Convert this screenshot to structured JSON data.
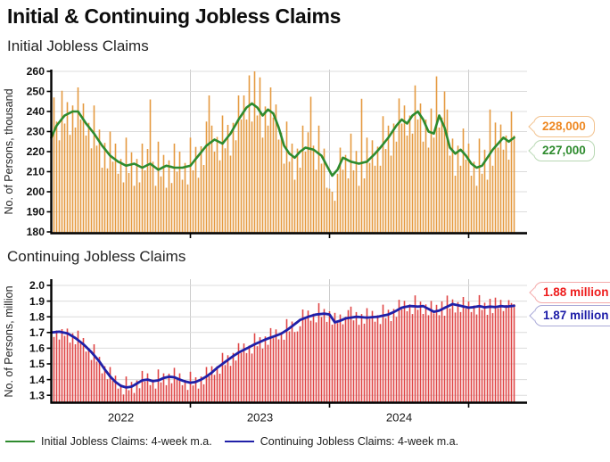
{
  "title": "Initial & Continuing Jobless Claims",
  "legend": [
    {
      "label": "Initial Jobless Claims: 4-week m.a.",
      "color": "#2e8b2e"
    },
    {
      "label": "Continuing Jobless Claims: 4-week m.a.",
      "color": "#2020a8"
    }
  ],
  "chart_data": [
    {
      "type": "bar",
      "subtitle": "Initial Jobless Claims",
      "y_axis_title": "No. of Persons, thousand",
      "y_ticks": [
        180,
        190,
        200,
        210,
        220,
        230,
        240,
        250,
        260
      ],
      "ylim": [
        180,
        260
      ],
      "y_decimals": 0,
      "x_unit": "week",
      "x_start_year": 2022,
      "x_gridline_weeks": [
        52,
        104,
        156
      ],
      "x_year_labels": [],
      "bar_color": "#e59a40",
      "line_color": "#2e8b2e",
      "line_name": "Initial Jobless Claims: 4-week m.a.",
      "callouts": [
        {
          "text": "228,000",
          "color": "#ee8822",
          "border": "#f2c28e"
        },
        {
          "text": "227,000",
          "color": "#2e8b2e",
          "border": "#b9d8b4"
        }
      ],
      "ma_weekly_points": [
        [
          0,
          227
        ],
        [
          2,
          233
        ],
        [
          5,
          238
        ],
        [
          8,
          240
        ],
        [
          10,
          240
        ],
        [
          13,
          234
        ],
        [
          16,
          229
        ],
        [
          19,
          223
        ],
        [
          22,
          218
        ],
        [
          25,
          215
        ],
        [
          28,
          213
        ],
        [
          31,
          214
        ],
        [
          34,
          212
        ],
        [
          37,
          214
        ],
        [
          40,
          211
        ],
        [
          43,
          213
        ],
        [
          46,
          212
        ],
        [
          49,
          212
        ],
        [
          52,
          213
        ],
        [
          55,
          218
        ],
        [
          58,
          223
        ],
        [
          61,
          226
        ],
        [
          64,
          224
        ],
        [
          67,
          229
        ],
        [
          70,
          236
        ],
        [
          73,
          242
        ],
        [
          75,
          244
        ],
        [
          77,
          242
        ],
        [
          79,
          238
        ],
        [
          81,
          241
        ],
        [
          83,
          239
        ],
        [
          85,
          232
        ],
        [
          87,
          223
        ],
        [
          89,
          219
        ],
        [
          91,
          217
        ],
        [
          93,
          220
        ],
        [
          95,
          222
        ],
        [
          98,
          221
        ],
        [
          101,
          218
        ],
        [
          103,
          213
        ],
        [
          105,
          208
        ],
        [
          107,
          211
        ],
        [
          109,
          217
        ],
        [
          112,
          215
        ],
        [
          115,
          214
        ],
        [
          118,
          215
        ],
        [
          121,
          219
        ],
        [
          123,
          222
        ],
        [
          126,
          227
        ],
        [
          129,
          233
        ],
        [
          131,
          236
        ],
        [
          133,
          234
        ],
        [
          135,
          238
        ],
        [
          137,
          240
        ],
        [
          139,
          236
        ],
        [
          141,
          230
        ],
        [
          143,
          229
        ],
        [
          145,
          238
        ],
        [
          147,
          232
        ],
        [
          149,
          222
        ],
        [
          151,
          219
        ],
        [
          153,
          221
        ],
        [
          155,
          218
        ],
        [
          157,
          214
        ],
        [
          159,
          212
        ],
        [
          161,
          213
        ],
        [
          163,
          217
        ],
        [
          165,
          221
        ],
        [
          167,
          224
        ],
        [
          169,
          227
        ],
        [
          171,
          225
        ],
        [
          173,
          227
        ]
      ],
      "bar_offsets_from_ma": [
        4,
        17,
        2,
        -9,
        14,
        -4,
        6,
        -11,
        3,
        -8,
        12,
        -2,
        8,
        -6,
        2,
        -9,
        14,
        -4,
        6,
        -11,
        3,
        -8,
        12,
        -2,
        8,
        -6,
        2,
        -9,
        14,
        -4,
        6,
        -11,
        3,
        -8,
        12,
        -2,
        8,
        32,
        2,
        -9,
        14,
        -4,
        6,
        -11,
        3,
        -8,
        12,
        -2,
        8,
        -6,
        2,
        -9,
        14,
        -4,
        6,
        -11,
        3,
        -8,
        12,
        24,
        8,
        -6,
        2,
        -9,
        14,
        -4,
        6,
        -11,
        3,
        -8,
        12,
        -2,
        8,
        -6,
        15,
        -9,
        17,
        -4,
        17,
        -11,
        3,
        -8,
        12,
        -2,
        8,
        -6,
        2,
        -9,
        14,
        -4,
        6,
        -11,
        3,
        -8,
        12,
        -2,
        8,
        26,
        2,
        -9,
        14,
        -4,
        6,
        -11,
        -9,
        -8,
        -14,
        -2,
        8,
        -6,
        2,
        -9,
        14,
        -4,
        6,
        -11,
        32,
        -8,
        12,
        -2,
        8,
        -6,
        2,
        -9,
        14,
        -4,
        6,
        -11,
        3,
        -8,
        12,
        -2,
        8,
        -6,
        2,
        -9,
        14,
        -4,
        6,
        -11,
        3,
        -8,
        12,
        -2,
        24,
        -6,
        2,
        18,
        14,
        -4,
        6,
        -11,
        3,
        -8,
        12,
        -2,
        8,
        -6,
        2,
        -9,
        14,
        -4,
        6,
        -11,
        22,
        -8,
        12,
        -2,
        8,
        -6,
        2,
        -9,
        14,
        1
      ]
    },
    {
      "type": "bar",
      "subtitle": "Continuing Jobless Claims",
      "y_axis_title": "No. of Persons, million",
      "y_ticks": [
        1.3,
        1.4,
        1.5,
        1.6,
        1.7,
        1.8,
        1.9,
        2.0
      ],
      "ylim": [
        1.3,
        2.0
      ],
      "y_decimals": 1,
      "x_unit": "week",
      "x_start_year": 2022,
      "x_gridline_weeks": [
        52,
        104,
        156
      ],
      "x_year_labels": [
        {
          "text": "2022",
          "week": 26
        },
        {
          "text": "2023",
          "week": 78
        },
        {
          "text": "2024",
          "week": 130
        }
      ],
      "bar_color": "#df4545",
      "line_color": "#2020a8",
      "line_name": "Continuing Jobless Claims: 4-week m.a.",
      "callouts": [
        {
          "text": "1.88 million",
          "color": "#ee1c1c",
          "border": "#f4a9a9"
        },
        {
          "text": "1.87 million",
          "color": "#1d1da8",
          "border": "#a9a9d8"
        }
      ],
      "ma_weekly_points": [
        [
          0,
          1.7
        ],
        [
          3,
          1.705
        ],
        [
          6,
          1.695
        ],
        [
          9,
          1.665
        ],
        [
          12,
          1.625
        ],
        [
          15,
          1.575
        ],
        [
          18,
          1.515
        ],
        [
          20,
          1.465
        ],
        [
          22,
          1.42
        ],
        [
          24,
          1.385
        ],
        [
          26,
          1.36
        ],
        [
          28,
          1.35
        ],
        [
          30,
          1.355
        ],
        [
          32,
          1.375
        ],
        [
          34,
          1.395
        ],
        [
          36,
          1.4
        ],
        [
          38,
          1.39
        ],
        [
          40,
          1.395
        ],
        [
          42,
          1.41
        ],
        [
          44,
          1.418
        ],
        [
          46,
          1.415
        ],
        [
          48,
          1.4
        ],
        [
          50,
          1.388
        ],
        [
          52,
          1.38
        ],
        [
          54,
          1.385
        ],
        [
          56,
          1.4
        ],
        [
          58,
          1.42
        ],
        [
          60,
          1.445
        ],
        [
          62,
          1.475
        ],
        [
          64,
          1.5
        ],
        [
          66,
          1.525
        ],
        [
          68,
          1.55
        ],
        [
          70,
          1.572
        ],
        [
          72,
          1.59
        ],
        [
          74,
          1.607
        ],
        [
          76,
          1.625
        ],
        [
          78,
          1.64
        ],
        [
          80,
          1.655
        ],
        [
          82,
          1.668
        ],
        [
          84,
          1.68
        ],
        [
          86,
          1.693
        ],
        [
          88,
          1.715
        ],
        [
          90,
          1.74
        ],
        [
          93,
          1.78
        ],
        [
          96,
          1.8
        ],
        [
          99,
          1.815
        ],
        [
          102,
          1.82
        ],
        [
          104,
          1.815
        ],
        [
          106,
          1.765
        ],
        [
          108,
          1.775
        ],
        [
          110,
          1.79
        ],
        [
          114,
          1.8
        ],
        [
          118,
          1.795
        ],
        [
          122,
          1.8
        ],
        [
          126,
          1.815
        ],
        [
          128,
          1.83
        ],
        [
          131,
          1.858
        ],
        [
          134,
          1.869
        ],
        [
          137,
          1.865
        ],
        [
          139,
          1.868
        ],
        [
          141,
          1.85
        ],
        [
          143,
          1.832
        ],
        [
          145,
          1.84
        ],
        [
          148,
          1.865
        ],
        [
          150,
          1.881
        ],
        [
          153,
          1.87
        ],
        [
          156,
          1.858
        ],
        [
          158,
          1.862
        ],
        [
          160,
          1.868
        ],
        [
          162,
          1.86
        ],
        [
          164,
          1.865
        ],
        [
          166,
          1.862
        ],
        [
          168,
          1.868
        ],
        [
          170,
          1.865
        ],
        [
          172,
          1.868
        ],
        [
          173,
          1.87
        ]
      ],
      "bar_offsets_from_ma": [
        0.02,
        -0.03,
        0.01,
        -0.05,
        0.02,
        -0.02,
        0.03,
        -0.05,
        0.02,
        -0.04,
        0.06,
        -0.01,
        0.04,
        -0.03,
        0.01,
        -0.05,
        0.07,
        -0.02,
        0.03,
        -0.05,
        0.02,
        -0.04,
        0.06,
        -0.01,
        0.04,
        -0.03,
        0.01,
        -0.05,
        0.07,
        -0.02,
        0.03,
        -0.05,
        0.02,
        -0.04,
        0.06,
        -0.01,
        0.04,
        -0.03,
        0.01,
        -0.05,
        0.07,
        -0.02,
        0.03,
        -0.05,
        0.02,
        -0.04,
        0.06,
        -0.01,
        0.04,
        -0.03,
        0.01,
        -0.05,
        0.07,
        -0.02,
        0.03,
        -0.05,
        0.02,
        -0.04,
        0.06,
        -0.01,
        0.04,
        -0.03,
        0.01,
        -0.05,
        0.07,
        -0.02,
        0.03,
        -0.05,
        0.02,
        -0.04,
        0.06,
        -0.01,
        0.04,
        -0.03,
        0.01,
        -0.05,
        0.07,
        -0.02,
        0.03,
        -0.05,
        0.02,
        -0.04,
        0.06,
        -0.01,
        0.04,
        -0.03,
        0.01,
        -0.05,
        0.07,
        -0.02,
        0.03,
        -0.05,
        -0.06,
        -0.04,
        0.06,
        -0.01,
        0.04,
        -0.03,
        0.01,
        -0.05,
        0.07,
        -0.02,
        0.03,
        -0.05,
        0.02,
        -0.04,
        0.06,
        -0.01,
        0.04,
        -0.03,
        0.01,
        0.05,
        0.07,
        -0.02,
        0.03,
        -0.05,
        0.02,
        -0.04,
        0.06,
        -0.01,
        0.04,
        -0.03,
        0.01,
        -0.05,
        0.07,
        -0.02,
        0.03,
        -0.05,
        0.02,
        -0.04,
        0.06,
        -0.01,
        0.04,
        -0.03,
        0.01,
        -0.05,
        0.07,
        -0.02,
        0.03,
        -0.05,
        0.02,
        -0.04,
        0.06,
        -0.01,
        0.04,
        -0.03,
        0.05,
        -0.05,
        0.07,
        -0.02,
        0.03,
        -0.05,
        0.02,
        -0.04,
        0.06,
        -0.01,
        0.04,
        -0.03,
        0.01,
        -0.05,
        0.07,
        -0.02,
        0.03,
        -0.05,
        0.05,
        -0.04,
        0.06,
        -0.01,
        0.04,
        -0.03,
        0.01,
        0.04,
        0.02,
        0.01
      ]
    }
  ]
}
